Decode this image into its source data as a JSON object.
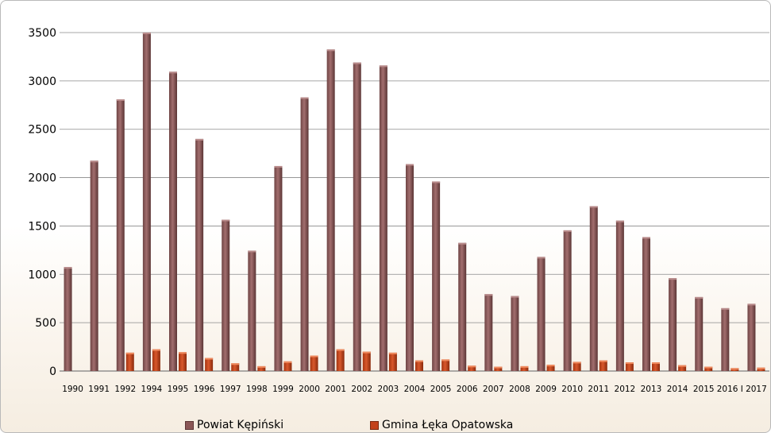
{
  "chart_data": {
    "type": "bar",
    "categories": [
      "1990",
      "1991",
      "1992",
      "1994",
      "1995",
      "1996",
      "1997",
      "1998",
      "1999",
      "2000",
      "2001",
      "2002",
      "2003",
      "2004",
      "2005",
      "2006",
      "2007",
      "2008",
      "2009",
      "2010",
      "2011",
      "2012",
      "2013",
      "2014",
      "2015",
      "2016 I",
      "2017"
    ],
    "series": [
      {
        "name": "Powiat Kępiński",
        "color": "#8a5656",
        "values": [
          1075,
          2175,
          2810,
          3500,
          3095,
          2400,
          1565,
          1245,
          2120,
          2830,
          3325,
          3190,
          3160,
          2140,
          1960,
          1325,
          795,
          775,
          1180,
          1455,
          1705,
          1555,
          1385,
          960,
          765,
          650,
          695
        ]
      },
      {
        "name": "Gmina Łęka Opatowska",
        "color": "#c3421a",
        "values": [
          0,
          0,
          190,
          225,
          195,
          135,
          80,
          50,
          100,
          160,
          225,
          200,
          190,
          110,
          120,
          55,
          45,
          50,
          65,
          95,
          110,
          90,
          90,
          60,
          45,
          30,
          35
        ]
      }
    ],
    "yticks": [
      0,
      500,
      1000,
      1500,
      2000,
      2500,
      3000,
      3500
    ],
    "ylim": [
      0,
      3500
    ],
    "grid": true,
    "legend_position": "bottom"
  }
}
